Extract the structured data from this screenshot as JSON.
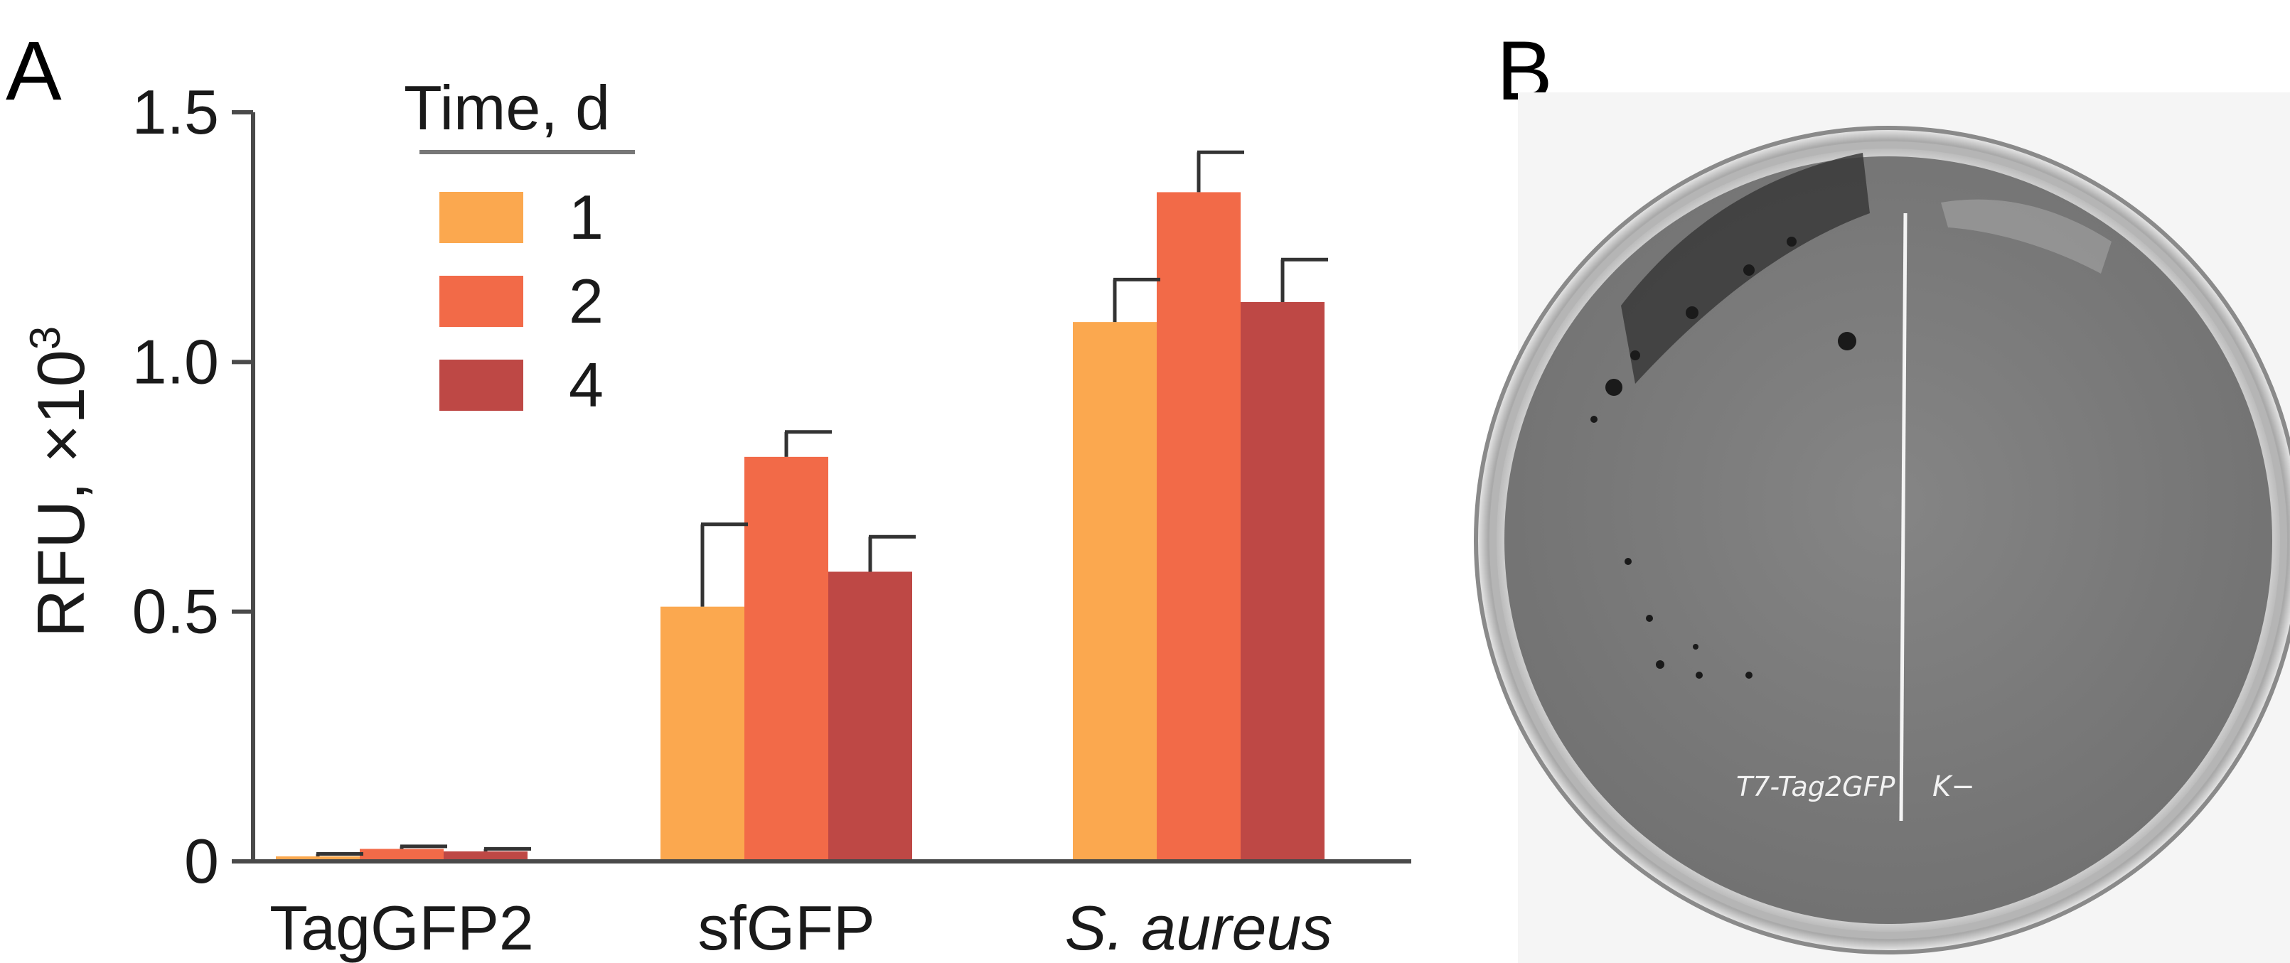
{
  "panel_a_label": "A",
  "panel_b_label": "B",
  "chart_data": {
    "type": "bar",
    "title": "",
    "xlabel": "",
    "ylabel": "RFU, ×10",
    "ylabel_superscript": "3",
    "ylim": [
      0,
      1.5
    ],
    "yticks": [
      0,
      0.5,
      1.0,
      1.5
    ],
    "ytick_labels": [
      "0",
      "0.5",
      "1.0",
      "1.5"
    ],
    "categories": [
      "TagGFP2",
      "sfGFP",
      "S. aureus"
    ],
    "category_italic": [
      false,
      false,
      true
    ],
    "legend_title": "Time, d",
    "legend_position": "top-left",
    "series": [
      {
        "name": "1",
        "color": "#FBA84F",
        "values": [
          0.01,
          0.51,
          1.08
        ],
        "errors": [
          0.005,
          0.165,
          0.085
        ]
      },
      {
        "name": "2",
        "color": "#F26A48",
        "values": [
          0.025,
          0.81,
          1.34
        ],
        "errors": [
          0.005,
          0.05,
          0.08
        ]
      },
      {
        "name": "4",
        "color": "#BE4845",
        "values": [
          0.02,
          0.58,
          1.12
        ],
        "errors": [
          0.005,
          0.07,
          0.085
        ]
      }
    ]
  },
  "plate": {
    "label_left": "T7-Tag2GFP",
    "label_right": "K−",
    "background_color": "#7e7e7e",
    "rim_color": "#c9c9c9"
  }
}
